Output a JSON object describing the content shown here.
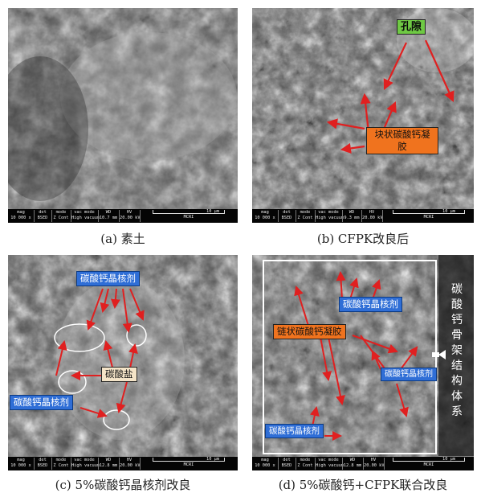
{
  "panels": [
    {
      "caption": "(a) 素土",
      "meta": {
        "mag": "10 000 x",
        "det": "BSED",
        "mode": "Z Cont",
        "vac": "High vacuum",
        "wd": "10.7 mm",
        "hv": "20.00 kV",
        "scale": "10 μm",
        "lab": "MCRI"
      }
    },
    {
      "caption": "(b) CFPK改良后",
      "meta": {
        "mag": "10 000 x",
        "det": "BSED",
        "mode": "Z Cont",
        "vac": "High vacuum",
        "wd": "9.3 mm",
        "hv": "20.00 kV",
        "scale": "10 μm",
        "lab": "MCRI"
      },
      "labels": {
        "pore": "孔隙",
        "gel": "块状碳酸钙凝胶"
      }
    },
    {
      "caption": "(c) 5%碳酸钙晶核剂改良",
      "meta": {
        "mag": "10 000 x",
        "det": "BSED",
        "mode": "Z Cont",
        "vac": "High vacuum",
        "wd": "12.8 mm",
        "hv": "20.00 kV",
        "scale": "10 μm",
        "lab": "MCRI"
      },
      "labels": {
        "nucleus_top": "碳酸钙晶核剂",
        "carbonate": "碳酸盐",
        "nucleus_left": "碳酸钙晶核剂"
      }
    },
    {
      "caption": "(d) 5%碳酸钙+CFPK联合改良",
      "meta": {
        "mag": "10 000 x",
        "det": "BSED",
        "mode": "Z Cont",
        "vac": "High vacuum",
        "wd": "12.8 mm",
        "hv": "20.00 kV",
        "scale": "10 μm",
        "lab": "MCRI"
      },
      "labels": {
        "nucleus_top": "碳酸钙晶核剂",
        "chain_gel": "链状碳酸钙凝胶",
        "nucleus_right": "碳酸钙晶核剂",
        "nucleus_bottom": "碳酸钙晶核剂",
        "skeleton": "碳酸钙骨架结构体系"
      }
    }
  ],
  "meta_headers": {
    "mag": "mag",
    "det": "det",
    "mode": "mode",
    "vac": "vac mode",
    "wd": "WD",
    "hv": "HV"
  },
  "colors": {
    "arrow": "#e02020",
    "label_green": "#6fc944",
    "label_orange": "#f0731e",
    "label_blue": "#2f6ed6",
    "label_beige": "#f4e4c8"
  }
}
